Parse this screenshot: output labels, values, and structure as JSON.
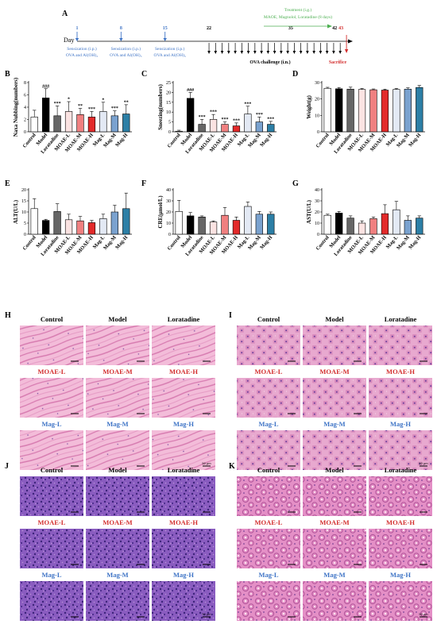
{
  "timeline": {
    "letter": "A",
    "day_label": "Day",
    "days": [
      {
        "label": "1",
        "pos": 1
      },
      {
        "label": "8",
        "pos": 8
      },
      {
        "label": "15",
        "pos": 15
      },
      {
        "label": "22",
        "pos": 22
      },
      {
        "label": "35",
        "pos": 35
      },
      {
        "label": "42",
        "pos": 42
      },
      {
        "label": "43",
        "pos": 43
      }
    ],
    "sensitization": [
      {
        "day": 1,
        "line1": "Sensization (i.p.)",
        "line2": "OVA and Al(OH)₃"
      },
      {
        "day": 8,
        "line1": "Sensization (i.p.)",
        "line2": "OVA and Al(OH)₃"
      },
      {
        "day": 15,
        "line1": "Sensization (i.p.)",
        "line2": "OVA and Al(OH)₃"
      }
    ],
    "treatment_line1": "Treatment (i.g.)",
    "treatment_line2": "MAOE, Magnolol, Loratadine (8 days)",
    "challenge_label": "OVA challenge (i.n.)",
    "sacrifice_label": "Sacrifice",
    "colors": {
      "blue": "#3f74c6",
      "green": "#4caf50",
      "red": "#d32f2f",
      "black": "#000000"
    }
  },
  "groups": [
    "Control",
    "Model",
    "Loratadine",
    "MOAE-L",
    "MOAE-M",
    "MOAE-H",
    "Mag-L",
    "Mag-M",
    "Mag-H"
  ],
  "group_fills": [
    "#ffffff",
    "#000000",
    "#666666",
    "#fbe3e2",
    "#f08080",
    "#e32a2a",
    "#e3e9f4",
    "#7aa2cf",
    "#2c7fa6"
  ],
  "chart_data": [
    {
      "letter": "B",
      "type": "bar",
      "ylabel": "Naxa Nubbing(numbers)",
      "ylim": [
        0,
        8
      ],
      "yticks": [
        "0",
        "2",
        "4",
        "6",
        "8"
      ],
      "values": [
        2.4,
        5.5,
        2.6,
        3.3,
        2.8,
        2.4,
        3.3,
        2.6,
        2.9
      ],
      "errors": [
        1.1,
        1.5,
        1.6,
        1.6,
        1.0,
        0.9,
        1.5,
        0.8,
        1.5
      ],
      "sig": [
        "",
        "###",
        "***",
        "*",
        "**",
        "***",
        "*",
        "***",
        "**"
      ]
    },
    {
      "letter": "C",
      "type": "bar",
      "ylabel": "Sneezing(numbers)",
      "ylim": [
        0,
        25
      ],
      "yticks": [
        "0",
        "5",
        "10",
        "15",
        "20",
        "25"
      ],
      "values": [
        0.3,
        17,
        3.8,
        6.3,
        3.8,
        3.0,
        9.0,
        5.0,
        3.8
      ],
      "errors": [
        0.5,
        3.0,
        2.5,
        2.5,
        1.2,
        1.5,
        4.0,
        2.5,
        1.5
      ],
      "sig": [
        "",
        "###",
        "***",
        "***",
        "***",
        "***",
        "***",
        "***",
        "***"
      ]
    },
    {
      "letter": "D",
      "type": "bar",
      "ylabel": "Weight(g)",
      "ylim": [
        0,
        30
      ],
      "yticks": [
        "0",
        "10",
        "20",
        "30"
      ],
      "values": [
        26.5,
        26.2,
        26.0,
        25.8,
        25.6,
        25.4,
        25.8,
        26.0,
        27.0
      ],
      "errors": [
        0.6,
        0.8,
        1.2,
        0.6,
        0.5,
        0.6,
        0.6,
        0.8,
        1.2
      ],
      "sig": [
        "",
        "",
        "",
        "",
        "",
        "",
        "",
        "",
        ""
      ]
    },
    {
      "letter": "E",
      "type": "bar",
      "ylabel": "ALT(U/L)",
      "ylim": [
        0,
        20
      ],
      "yticks": [
        "0",
        "5",
        "10",
        "15",
        "20"
      ],
      "values": [
        11.5,
        6.2,
        10.2,
        6.5,
        6.0,
        5.2,
        7.0,
        10.0,
        11.5
      ],
      "errors": [
        4.5,
        0.5,
        3.5,
        2.5,
        2.0,
        1.0,
        2.0,
        3.0,
        7.0
      ],
      "sig": [
        "",
        "",
        "",
        "",
        "",
        "",
        "",
        "",
        ""
      ]
    },
    {
      "letter": "F",
      "type": "bar",
      "ylabel": "CRE(μmol/L)",
      "ylim": [
        0,
        40
      ],
      "yticks": [
        "0",
        "10",
        "20",
        "30",
        "40"
      ],
      "values": [
        20.5,
        16.5,
        15.5,
        11.0,
        17.0,
        12.5,
        25.0,
        18.0,
        18.0
      ],
      "errors": [
        10.0,
        3.0,
        1.0,
        1.0,
        7.0,
        3.0,
        4.0,
        2.5,
        2.0
      ],
      "sig": [
        "",
        "",
        "",
        "",
        "",
        "",
        "",
        "",
        ""
      ]
    },
    {
      "letter": "G",
      "type": "bar",
      "ylabel": "AST(U/L)",
      "ylim": [
        0,
        40
      ],
      "yticks": [
        "0",
        "10",
        "20",
        "30",
        "40"
      ],
      "values": [
        17.0,
        19.0,
        14.5,
        10.0,
        14.0,
        18.5,
        22.0,
        12.5,
        14.5
      ],
      "errors": [
        1.0,
        1.5,
        2.0,
        2.0,
        1.5,
        8.0,
        7.5,
        4.0,
        2.0
      ],
      "sig": [
        "",
        "",
        "",
        "",
        "",
        "",
        "",
        "",
        ""
      ]
    }
  ],
  "histology": [
    {
      "letter": "H",
      "tissue": "heart",
      "labels": [
        "Control",
        "Model",
        "Loratadine",
        "MOAE-L",
        "MOAE-M",
        "MOAE-H",
        "Mag-L",
        "Mag-M",
        "Mag-H"
      ],
      "scale_label": "50 μm"
    },
    {
      "letter": "I",
      "tissue": "liver",
      "labels": [
        "Control",
        "Model",
        "Loratadine",
        "MOAE-L",
        "MOAE-M",
        "MOAE-H",
        "Mag-L",
        "Mag-M",
        "Mag-H"
      ],
      "scale_label": "50 μm"
    },
    {
      "letter": "J",
      "tissue": "spleen",
      "labels": [
        "Control",
        "Model",
        "Loratadine",
        "MOAE-L",
        "MOAE-M",
        "MOAE-H",
        "Mag-L",
        "Mag-M",
        "Mag-H"
      ],
      "scale_label": "50 μm"
    },
    {
      "letter": "K",
      "tissue": "kidney",
      "labels": [
        "Control",
        "Model",
        "Loratadine",
        "MOAE-L",
        "MOAE-M",
        "MOAE-H",
        "Mag-L",
        "Mag-M",
        "Mag-H"
      ],
      "scale_label": "50 μm"
    }
  ],
  "label_colors": {
    "row1": "#000000",
    "row2": "#d32f2f",
    "row3": "#3f74c6"
  }
}
